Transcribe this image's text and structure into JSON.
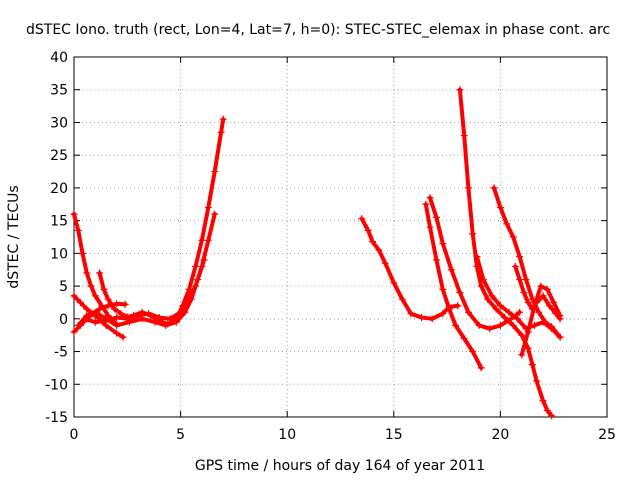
{
  "chart_data": {
    "type": "scatter",
    "title": "dSTEC Iono. truth (rect, Lon=4, Lat=7, h=0): STEC-STEC_elemax in phase cont. arc",
    "xlabel": "GPS time / hours of day 164 of year 2011",
    "ylabel": "dSTEC  / TECUs",
    "xlim": [
      0,
      25
    ],
    "ylim": [
      -15,
      40
    ],
    "xticks": [
      0,
      5,
      10,
      15,
      20,
      25
    ],
    "yticks": [
      -15,
      -10,
      -5,
      0,
      5,
      10,
      15,
      20,
      25,
      30,
      35,
      40
    ],
    "grid": true,
    "marker": "plus",
    "color": "#ff0000",
    "arcs": [
      {
        "x": [
          0.0,
          0.2,
          0.4,
          0.6,
          0.8,
          1.0,
          1.3,
          1.6,
          1.9
        ],
        "y": [
          16.0,
          13.5,
          10.0,
          7.0,
          5.0,
          3.5,
          2.0,
          0.5,
          -0.5
        ]
      },
      {
        "x": [
          0.0,
          0.3,
          0.6,
          1.0,
          1.5,
          2.0,
          2.3
        ],
        "y": [
          3.5,
          2.5,
          1.5,
          0.5,
          -1.0,
          -2.2,
          -2.8
        ]
      },
      {
        "x": [
          0.0,
          0.3,
          0.6,
          0.9,
          1.2,
          1.6,
          2.0,
          2.4
        ],
        "y": [
          -2.0,
          -1.0,
          0.0,
          0.8,
          1.5,
          2.0,
          2.3,
          2.2
        ]
      },
      {
        "x": [
          1.2,
          1.4,
          1.6,
          1.9,
          2.2,
          2.5,
          2.8,
          3.2,
          3.6,
          4.0,
          4.4,
          4.8,
          5.1,
          5.4,
          5.7,
          6.0,
          6.3,
          6.6,
          6.9,
          7.0
        ],
        "y": [
          7.0,
          4.5,
          3.0,
          1.5,
          0.8,
          0.3,
          0.5,
          1.0,
          0.5,
          -0.3,
          -0.8,
          0.0,
          2.0,
          4.5,
          8.0,
          12.0,
          17.0,
          22.5,
          28.5,
          30.5
        ]
      },
      {
        "x": [
          0.5,
          1.0,
          1.5,
          2.0,
          2.5,
          3.0,
          3.5,
          4.0,
          4.5,
          5.0,
          5.3,
          5.7,
          6.0,
          6.3,
          6.6
        ],
        "y": [
          0.0,
          -0.5,
          -0.3,
          0.2,
          0.0,
          0.5,
          0.8,
          0.2,
          0.0,
          1.0,
          2.5,
          5.0,
          8.0,
          12.0,
          16.0
        ]
      },
      {
        "x": [
          0.2,
          0.6,
          1.0,
          1.5,
          2.0,
          2.6,
          3.2,
          3.8,
          4.3,
          4.8,
          5.2,
          5.5,
          5.8,
          6.1
        ],
        "y": [
          -1.0,
          0.5,
          1.0,
          0.0,
          -1.0,
          -0.5,
          0.0,
          -0.5,
          -1.0,
          -0.5,
          1.0,
          3.0,
          6.0,
          9.0
        ]
      },
      {
        "x": [
          13.5,
          13.8,
          14.0,
          14.3,
          14.6,
          15.0,
          15.4,
          15.8,
          16.3,
          16.8,
          17.3,
          17.6,
          18.0
        ],
        "y": [
          15.3,
          13.5,
          11.8,
          10.5,
          8.5,
          5.5,
          3.0,
          0.8,
          0.2,
          0.0,
          0.8,
          1.8,
          2.0
        ]
      },
      {
        "x": [
          16.5,
          16.7,
          17.0,
          17.3,
          17.6,
          17.9,
          18.3,
          18.7,
          19.1
        ],
        "y": [
          17.5,
          14.0,
          9.0,
          4.5,
          1.5,
          -1.0,
          -3.0,
          -5.0,
          -7.5
        ]
      },
      {
        "x": [
          16.7,
          17.0,
          17.3,
          17.7,
          18.1,
          18.5,
          19.0,
          19.5,
          20.0,
          20.5,
          20.9
        ],
        "y": [
          18.5,
          15.5,
          11.5,
          7.5,
          4.0,
          1.0,
          -1.0,
          -1.5,
          -1.0,
          0.0,
          1.0
        ]
      },
      {
        "x": [
          18.1,
          18.3,
          18.5,
          18.7,
          18.9,
          19.1,
          19.4,
          19.8,
          20.2,
          20.6,
          21.0,
          21.3,
          21.5,
          21.7,
          22.0,
          22.2,
          22.4
        ],
        "y": [
          35.0,
          28.0,
          20.0,
          13.0,
          8.0,
          5.0,
          3.0,
          1.5,
          0.2,
          -1.0,
          -2.5,
          -4.5,
          -7.0,
          -9.5,
          -12.5,
          -14.0,
          -14.8
        ]
      },
      {
        "x": [
          18.9,
          19.2,
          19.6,
          20.0,
          20.4,
          20.8,
          21.2,
          21.6,
          22.0,
          22.4,
          22.8
        ],
        "y": [
          9.5,
          6.0,
          3.5,
          2.0,
          1.0,
          0.0,
          -1.5,
          -1.0,
          -0.5,
          -1.5,
          -2.8
        ]
      },
      {
        "x": [
          19.7,
          20.0,
          20.3,
          20.6,
          20.9,
          21.2,
          21.5,
          21.8,
          22.1,
          22.4,
          22.8
        ],
        "y": [
          20.0,
          17.0,
          14.5,
          12.5,
          9.5,
          6.0,
          3.0,
          1.0,
          -0.5,
          -1.2,
          -2.8
        ]
      },
      {
        "x": [
          20.7,
          20.9,
          21.1,
          21.3,
          21.5,
          21.7,
          22.0,
          22.3,
          22.6,
          22.8
        ],
        "y": [
          8.0,
          6.0,
          4.0,
          2.5,
          1.5,
          2.5,
          3.5,
          2.0,
          0.8,
          0.0
        ]
      },
      {
        "x": [
          21.0,
          21.3,
          21.6,
          21.9,
          22.2,
          22.5,
          22.8
        ],
        "y": [
          -5.5,
          -2.0,
          2.0,
          5.0,
          4.5,
          2.5,
          0.5
        ]
      }
    ]
  }
}
